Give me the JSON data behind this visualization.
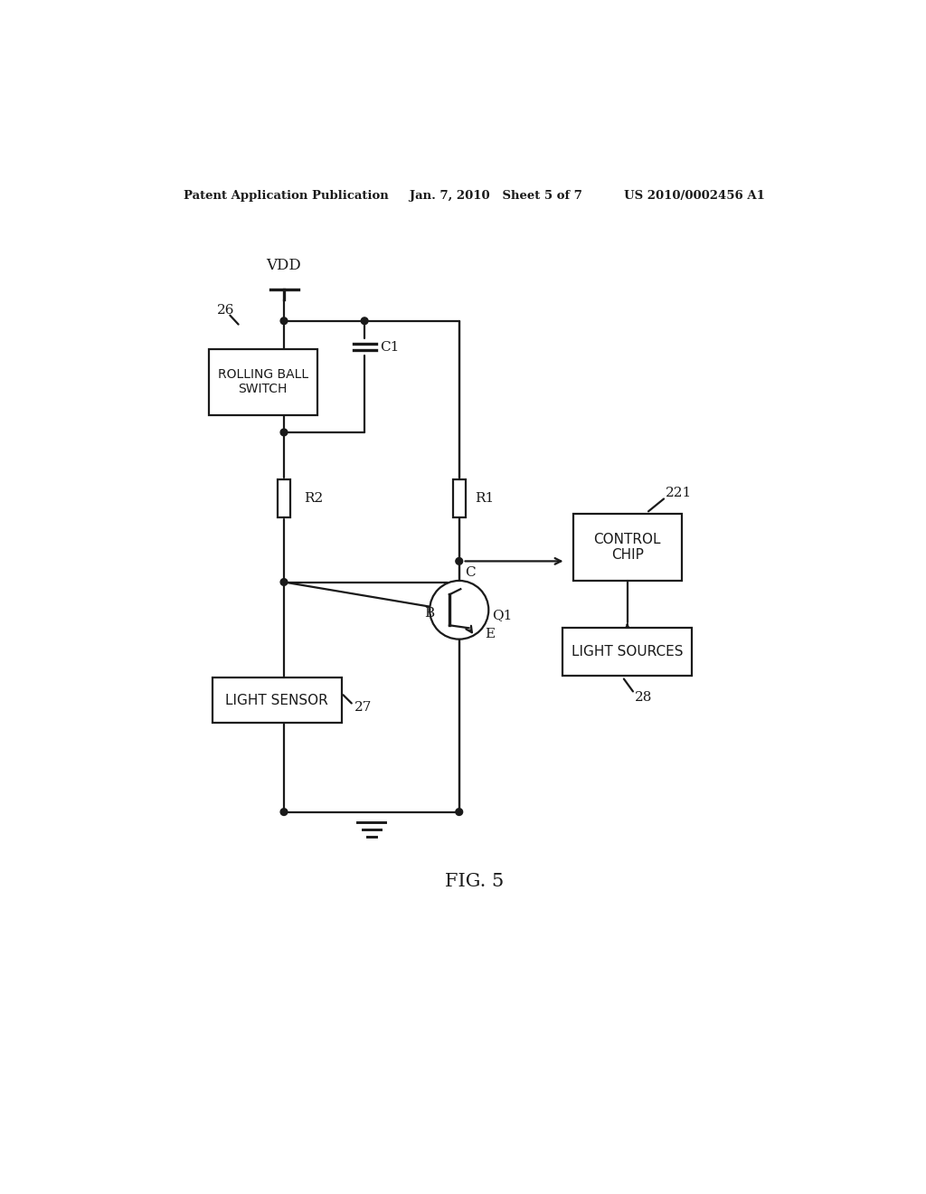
{
  "bg_color": "#ffffff",
  "lc": "#1a1a1a",
  "lw": 1.6,
  "header": "Patent Application Publication     Jan. 7, 2010   Sheet 5 of 7          US 2010/0002456 A1",
  "fig_label": "FIG. 5",
  "vdd": "VDD",
  "c1": "C1",
  "r2": "R2",
  "r1": "R1",
  "switch_text": "ROLLING BALL\nSWITCH",
  "switch_num": "26",
  "ctrl_text": "CONTROL\nCHIP",
  "ctrl_num": "221",
  "ls_text": "LIGHT SOURCES",
  "ls_num": "28",
  "sensor_text": "LIGHT SENSOR",
  "sensor_num": "27",
  "q1": "Q1",
  "base": "B",
  "collector": "C",
  "emitter": "E"
}
